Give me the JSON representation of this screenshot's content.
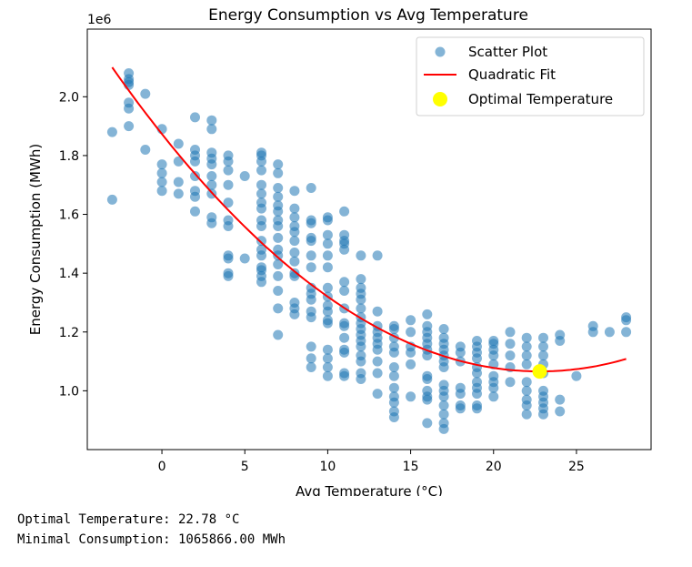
{
  "chart_data": {
    "type": "scatter",
    "title": "Energy Consumption vs Avg Temperature",
    "xlabel": "Avg Temperature (°C)",
    "ylabel": "Energy Consumption (MWh)",
    "y_offset_label": "1e6",
    "xlim": [
      -4.5,
      29.5
    ],
    "ylim": [
      800000,
      2230000
    ],
    "xticks": [
      0,
      5,
      10,
      15,
      20,
      25
    ],
    "yticks": [
      1000000,
      1200000,
      1400000,
      1600000,
      1800000,
      2000000
    ],
    "ytick_labels": [
      "1.0",
      "1.2",
      "1.4",
      "1.6",
      "1.8",
      "2.0"
    ],
    "grid": false,
    "legend_position": "top-right",
    "legend": [
      "Scatter Plot",
      "Quadratic Fit",
      "Optimal Temperature"
    ],
    "colors": {
      "scatter": "#1f77b4",
      "fit": "#ff0000",
      "optimal": "#ffff00"
    },
    "scatter": [
      [
        -3,
        1.88
      ],
      [
        -3,
        1.65
      ],
      [
        -2,
        2.08
      ],
      [
        -2,
        2.06
      ],
      [
        -2,
        2.05
      ],
      [
        -2,
        2.04
      ],
      [
        -2,
        1.98
      ],
      [
        -2,
        1.96
      ],
      [
        -2,
        1.9
      ],
      [
        -1,
        2.01
      ],
      [
        -1,
        1.82
      ],
      [
        0,
        1.89
      ],
      [
        0,
        1.77
      ],
      [
        0,
        1.74
      ],
      [
        0,
        1.71
      ],
      [
        0,
        1.68
      ],
      [
        1,
        1.84
      ],
      [
        1,
        1.78
      ],
      [
        1,
        1.71
      ],
      [
        1,
        1.67
      ],
      [
        2,
        1.93
      ],
      [
        2,
        1.82
      ],
      [
        2,
        1.8
      ],
      [
        2,
        1.78
      ],
      [
        2,
        1.73
      ],
      [
        2,
        1.68
      ],
      [
        2,
        1.66
      ],
      [
        2,
        1.61
      ],
      [
        3,
        1.92
      ],
      [
        3,
        1.89
      ],
      [
        3,
        1.81
      ],
      [
        3,
        1.79
      ],
      [
        3,
        1.77
      ],
      [
        3,
        1.73
      ],
      [
        3,
        1.7
      ],
      [
        3,
        1.67
      ],
      [
        3,
        1.59
      ],
      [
        3,
        1.57
      ],
      [
        4,
        1.8
      ],
      [
        4,
        1.78
      ],
      [
        4,
        1.75
      ],
      [
        4,
        1.7
      ],
      [
        4,
        1.64
      ],
      [
        4,
        1.58
      ],
      [
        4,
        1.56
      ],
      [
        4,
        1.46
      ],
      [
        4,
        1.45
      ],
      [
        4,
        1.4
      ],
      [
        4,
        1.39
      ],
      [
        5,
        1.73
      ],
      [
        5,
        1.45
      ],
      [
        6,
        1.81
      ],
      [
        6,
        1.8
      ],
      [
        6,
        1.78
      ],
      [
        6,
        1.75
      ],
      [
        6,
        1.7
      ],
      [
        6,
        1.67
      ],
      [
        6,
        1.64
      ],
      [
        6,
        1.62
      ],
      [
        6,
        1.58
      ],
      [
        6,
        1.56
      ],
      [
        6,
        1.51
      ],
      [
        6,
        1.48
      ],
      [
        6,
        1.46
      ],
      [
        6,
        1.42
      ],
      [
        6,
        1.41
      ],
      [
        6,
        1.39
      ],
      [
        6,
        1.37
      ],
      [
        7,
        1.77
      ],
      [
        7,
        1.74
      ],
      [
        7,
        1.69
      ],
      [
        7,
        1.66
      ],
      [
        7,
        1.63
      ],
      [
        7,
        1.61
      ],
      [
        7,
        1.58
      ],
      [
        7,
        1.56
      ],
      [
        7,
        1.52
      ],
      [
        7,
        1.48
      ],
      [
        7,
        1.46
      ],
      [
        7,
        1.43
      ],
      [
        7,
        1.39
      ],
      [
        7,
        1.34
      ],
      [
        7,
        1.28
      ],
      [
        7,
        1.19
      ],
      [
        8,
        1.68
      ],
      [
        8,
        1.62
      ],
      [
        8,
        1.59
      ],
      [
        8,
        1.56
      ],
      [
        8,
        1.54
      ],
      [
        8,
        1.51
      ],
      [
        8,
        1.47
      ],
      [
        8,
        1.44
      ],
      [
        8,
        1.4
      ],
      [
        8,
        1.39
      ],
      [
        8,
        1.3
      ],
      [
        8,
        1.28
      ],
      [
        8,
        1.26
      ],
      [
        9,
        1.69
      ],
      [
        9,
        1.58
      ],
      [
        9,
        1.57
      ],
      [
        9,
        1.52
      ],
      [
        9,
        1.51
      ],
      [
        9,
        1.46
      ],
      [
        9,
        1.42
      ],
      [
        9,
        1.35
      ],
      [
        9,
        1.33
      ],
      [
        9,
        1.31
      ],
      [
        9,
        1.27
      ],
      [
        9,
        1.25
      ],
      [
        9,
        1.15
      ],
      [
        9,
        1.11
      ],
      [
        9,
        1.08
      ],
      [
        10,
        1.59
      ],
      [
        10,
        1.58
      ],
      [
        10,
        1.53
      ],
      [
        10,
        1.5
      ],
      [
        10,
        1.46
      ],
      [
        10,
        1.42
      ],
      [
        10,
        1.35
      ],
      [
        10,
        1.32
      ],
      [
        10,
        1.29
      ],
      [
        10,
        1.27
      ],
      [
        10,
        1.24
      ],
      [
        10,
        1.23
      ],
      [
        10,
        1.14
      ],
      [
        10,
        1.11
      ],
      [
        10,
        1.08
      ],
      [
        10,
        1.05
      ],
      [
        11,
        1.61
      ],
      [
        11,
        1.53
      ],
      [
        11,
        1.51
      ],
      [
        11,
        1.5
      ],
      [
        11,
        1.48
      ],
      [
        11,
        1.37
      ],
      [
        11,
        1.34
      ],
      [
        11,
        1.28
      ],
      [
        11,
        1.23
      ],
      [
        11,
        1.22
      ],
      [
        11,
        1.18
      ],
      [
        11,
        1.14
      ],
      [
        11,
        1.13
      ],
      [
        11,
        1.06
      ],
      [
        11,
        1.05
      ],
      [
        12,
        1.46
      ],
      [
        12,
        1.38
      ],
      [
        12,
        1.35
      ],
      [
        12,
        1.33
      ],
      [
        12,
        1.31
      ],
      [
        12,
        1.28
      ],
      [
        12,
        1.25
      ],
      [
        12,
        1.23
      ],
      [
        12,
        1.21
      ],
      [
        12,
        1.19
      ],
      [
        12,
        1.17
      ],
      [
        12,
        1.15
      ],
      [
        12,
        1.12
      ],
      [
        12,
        1.1
      ],
      [
        12,
        1.06
      ],
      [
        12,
        1.04
      ],
      [
        13,
        1.46
      ],
      [
        13,
        1.27
      ],
      [
        13,
        1.22
      ],
      [
        13,
        1.2
      ],
      [
        13,
        1.18
      ],
      [
        13,
        1.16
      ],
      [
        13,
        1.14
      ],
      [
        13,
        1.1
      ],
      [
        13,
        1.06
      ],
      [
        13,
        0.99
      ],
      [
        14,
        1.22
      ],
      [
        14,
        1.21
      ],
      [
        14,
        1.18
      ],
      [
        14,
        1.15
      ],
      [
        14,
        1.13
      ],
      [
        14,
        1.08
      ],
      [
        14,
        1.05
      ],
      [
        14,
        1.01
      ],
      [
        14,
        0.98
      ],
      [
        14,
        0.96
      ],
      [
        14,
        0.93
      ],
      [
        14,
        0.91
      ],
      [
        15,
        1.24
      ],
      [
        15,
        1.2
      ],
      [
        15,
        1.15
      ],
      [
        15,
        1.13
      ],
      [
        15,
        1.09
      ],
      [
        15,
        0.98
      ],
      [
        16,
        1.26
      ],
      [
        16,
        1.22
      ],
      [
        16,
        1.2
      ],
      [
        16,
        1.18
      ],
      [
        16,
        1.16
      ],
      [
        16,
        1.14
      ],
      [
        16,
        1.12
      ],
      [
        16,
        1.05
      ],
      [
        16,
        1.04
      ],
      [
        16,
        1.0
      ],
      [
        16,
        0.98
      ],
      [
        16,
        0.97
      ],
      [
        16,
        0.89
      ],
      [
        17,
        1.21
      ],
      [
        17,
        1.18
      ],
      [
        17,
        1.16
      ],
      [
        17,
        1.14
      ],
      [
        17,
        1.12
      ],
      [
        17,
        1.1
      ],
      [
        17,
        1.08
      ],
      [
        17,
        1.02
      ],
      [
        17,
        1.0
      ],
      [
        17,
        0.98
      ],
      [
        17,
        0.95
      ],
      [
        17,
        0.92
      ],
      [
        17,
        0.89
      ],
      [
        17,
        0.87
      ],
      [
        18,
        1.15
      ],
      [
        18,
        1.13
      ],
      [
        18,
        1.1
      ],
      [
        18,
        1.01
      ],
      [
        18,
        0.99
      ],
      [
        18,
        0.95
      ],
      [
        18,
        0.94
      ],
      [
        19,
        1.17
      ],
      [
        19,
        1.15
      ],
      [
        19,
        1.13
      ],
      [
        19,
        1.11
      ],
      [
        19,
        1.08
      ],
      [
        19,
        1.06
      ],
      [
        19,
        1.03
      ],
      [
        19,
        1.01
      ],
      [
        19,
        0.99
      ],
      [
        19,
        0.95
      ],
      [
        19,
        0.94
      ],
      [
        20,
        1.17
      ],
      [
        20,
        1.16
      ],
      [
        20,
        1.14
      ],
      [
        20,
        1.12
      ],
      [
        20,
        1.09
      ],
      [
        20,
        1.05
      ],
      [
        20,
        1.03
      ],
      [
        20,
        1.01
      ],
      [
        20,
        0.98
      ],
      [
        21,
        1.2
      ],
      [
        21,
        1.16
      ],
      [
        21,
        1.12
      ],
      [
        21,
        1.08
      ],
      [
        21,
        1.03
      ],
      [
        22,
        1.18
      ],
      [
        22,
        1.15
      ],
      [
        22,
        1.12
      ],
      [
        22,
        1.09
      ],
      [
        22,
        1.03
      ],
      [
        22,
        1.0
      ],
      [
        22,
        0.97
      ],
      [
        22,
        0.95
      ],
      [
        22,
        0.92
      ],
      [
        23,
        1.18
      ],
      [
        23,
        1.15
      ],
      [
        23,
        1.12
      ],
      [
        23,
        1.09
      ],
      [
        23,
        1.06
      ],
      [
        23,
        1.0
      ],
      [
        23,
        0.98
      ],
      [
        23,
        0.96
      ],
      [
        23,
        0.94
      ],
      [
        23,
        0.92
      ],
      [
        24,
        1.19
      ],
      [
        24,
        1.17
      ],
      [
        24,
        0.97
      ],
      [
        24,
        0.93
      ],
      [
        25,
        1.05
      ],
      [
        26,
        1.22
      ],
      [
        26,
        1.2
      ],
      [
        27,
        1.2
      ],
      [
        28,
        1.25
      ],
      [
        28,
        1.24
      ],
      [
        28,
        1.2
      ]
    ],
    "scatter_unit": 1000000,
    "fit": {
      "a": 1.625e-06,
      "b": -7.397e-05,
      "c": 1.9076,
      "x_start": -3,
      "x_end": 28
    },
    "optimal": {
      "x": 22.78,
      "y": 1065866.0
    }
  },
  "output": {
    "line1": "Optimal Temperature: 22.78 °C",
    "line2": "Minimal Consumption: 1065866.00 MWh"
  }
}
